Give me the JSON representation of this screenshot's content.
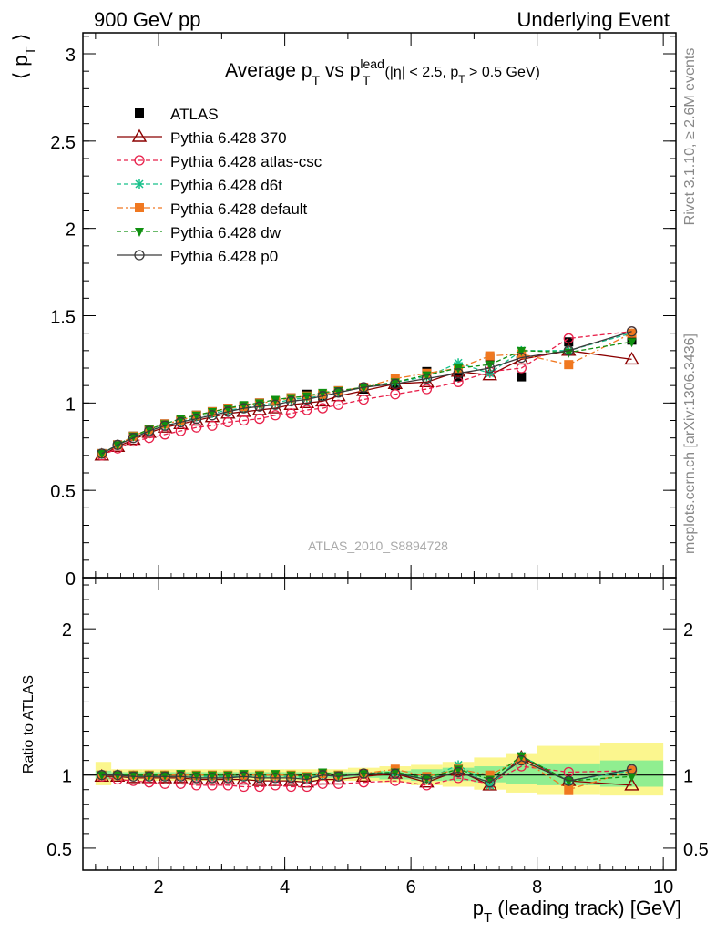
{
  "header": {
    "left": "900 GeV pp",
    "right": "Underlying Event"
  },
  "side_labels": {
    "rivet": "Rivet 3.1.10, ≥ 2.6M events",
    "mcplots": "mcplots.cern.ch [arXiv:1306.3436]"
  },
  "watermark": "ATLAS_2010_S8894728",
  "chart_data": [
    {
      "type": "scatter",
      "panel": "main",
      "title": "Average p_T vs p_T^lead (|η| < 2.5, p_T > 0.5 GeV)",
      "ylabel": "⟨ p_T ⟩",
      "xlim": [
        0.8,
        10.2
      ],
      "ylim": [
        0,
        3.12
      ],
      "yticks": [
        "0",
        "0.5",
        "1",
        "1.5",
        "2",
        "2.5",
        "3"
      ],
      "x": [
        1.1,
        1.35,
        1.6,
        1.85,
        2.1,
        2.35,
        2.6,
        2.85,
        3.1,
        3.35,
        3.6,
        3.85,
        4.1,
        4.35,
        4.6,
        4.85,
        5.25,
        5.75,
        6.25,
        6.75,
        7.25,
        7.75,
        8.5,
        9.5
      ],
      "series": [
        {
          "name": "ATLAS",
          "color": "#000000",
          "marker": "square-filled",
          "values": [
            0.71,
            0.76,
            0.81,
            0.85,
            0.88,
            0.9,
            0.93,
            0.95,
            0.97,
            0.98,
            1.0,
            1.01,
            1.03,
            1.05,
            1.04,
            1.07,
            1.08,
            1.1,
            1.18,
            1.15,
            1.26,
            1.15,
            1.35,
            1.36
          ]
        },
        {
          "name": "Pythia 6.428 370",
          "color": "#8b0000",
          "marker": "triangle-open",
          "line": "solid",
          "values": [
            0.7,
            0.75,
            0.79,
            0.83,
            0.86,
            0.88,
            0.9,
            0.92,
            0.94,
            0.95,
            0.96,
            0.97,
            0.99,
            1.0,
            1.01,
            1.04,
            1.07,
            1.11,
            1.12,
            1.18,
            1.16,
            1.25,
            1.3,
            1.25
          ]
        },
        {
          "name": "Pythia 6.428 atlas-csc",
          "color": "#e8204a",
          "marker": "circle-open",
          "line": "dashed",
          "values": [
            0.7,
            0.74,
            0.78,
            0.8,
            0.82,
            0.84,
            0.86,
            0.87,
            0.89,
            0.9,
            0.91,
            0.93,
            0.94,
            0.96,
            0.97,
            0.99,
            1.02,
            1.05,
            1.08,
            1.12,
            1.18,
            1.2,
            1.37,
            1.41
          ]
        },
        {
          "name": "Pythia 6.428 d6t",
          "color": "#18c08a",
          "marker": "star",
          "line": "dashed",
          "values": [
            0.71,
            0.76,
            0.81,
            0.84,
            0.87,
            0.89,
            0.92,
            0.94,
            0.96,
            0.97,
            0.99,
            1.0,
            1.02,
            1.03,
            1.04,
            1.06,
            1.09,
            1.12,
            1.15,
            1.23,
            1.17,
            1.3,
            1.3,
            1.4
          ]
        },
        {
          "name": "Pythia 6.428 default",
          "color": "#f07820",
          "marker": "square-filled",
          "line": "dashdot",
          "values": [
            0.71,
            0.76,
            0.81,
            0.85,
            0.88,
            0.9,
            0.93,
            0.95,
            0.97,
            0.98,
            1.0,
            1.01,
            1.03,
            1.04,
            1.05,
            1.07,
            1.09,
            1.14,
            1.17,
            1.2,
            1.27,
            1.28,
            1.22,
            1.4
          ]
        },
        {
          "name": "Pythia 6.428 dw",
          "color": "#109010",
          "marker": "triangle-down-filled",
          "line": "dashed",
          "values": [
            0.71,
            0.76,
            0.81,
            0.85,
            0.88,
            0.91,
            0.93,
            0.95,
            0.97,
            0.99,
            1.0,
            1.02,
            1.03,
            1.04,
            1.06,
            1.07,
            1.09,
            1.12,
            1.16,
            1.2,
            1.22,
            1.3,
            1.29,
            1.35
          ]
        },
        {
          "name": "Pythia 6.428 p0",
          "color": "#3a3a3a",
          "marker": "circle-open",
          "line": "solid",
          "values": [
            0.71,
            0.76,
            0.8,
            0.84,
            0.87,
            0.89,
            0.91,
            0.93,
            0.95,
            0.97,
            0.98,
            0.99,
            1.01,
            1.02,
            1.04,
            1.06,
            1.09,
            1.11,
            1.14,
            1.17,
            1.2,
            1.26,
            1.3,
            1.41
          ]
        }
      ]
    },
    {
      "type": "scatter",
      "panel": "ratio",
      "ylabel": "Ratio to ATLAS",
      "xlabel": "p_T (leading track) [GeV]",
      "xlim": [
        0.8,
        10.2
      ],
      "ylim": [
        0.35,
        2.35
      ],
      "xticks": [
        "2",
        "4",
        "6",
        "8",
        "10"
      ],
      "yticks": [
        "0.5",
        "1",
        "2"
      ],
      "reference": 1,
      "band_x_edges": [
        1.0,
        1.25,
        1.5,
        1.75,
        2.0,
        2.25,
        2.5,
        2.75,
        3.0,
        3.25,
        3.5,
        3.75,
        4.0,
        4.25,
        4.5,
        4.75,
        5.0,
        5.5,
        6.0,
        6.5,
        7.0,
        7.5,
        8.0,
        9.0,
        10.0
      ],
      "stat_band": [
        [
          0.97,
          1.03
        ],
        [
          0.98,
          1.02
        ],
        [
          0.98,
          1.02
        ],
        [
          0.98,
          1.02
        ],
        [
          0.98,
          1.02
        ],
        [
          0.98,
          1.02
        ],
        [
          0.98,
          1.02
        ],
        [
          0.98,
          1.02
        ],
        [
          0.98,
          1.02
        ],
        [
          0.98,
          1.02
        ],
        [
          0.98,
          1.02
        ],
        [
          0.98,
          1.02
        ],
        [
          0.98,
          1.02
        ],
        [
          0.98,
          1.02
        ],
        [
          0.98,
          1.02
        ],
        [
          0.98,
          1.02
        ],
        [
          0.98,
          1.02
        ],
        [
          0.97,
          1.03
        ],
        [
          0.96,
          1.04
        ],
        [
          0.96,
          1.05
        ],
        [
          0.95,
          1.06
        ],
        [
          0.94,
          1.07
        ],
        [
          0.93,
          1.08
        ],
        [
          0.92,
          1.1
        ]
      ],
      "total_band": [
        [
          0.93,
          1.09
        ],
        [
          0.96,
          1.04
        ],
        [
          0.96,
          1.04
        ],
        [
          0.96,
          1.04
        ],
        [
          0.96,
          1.04
        ],
        [
          0.96,
          1.04
        ],
        [
          0.96,
          1.04
        ],
        [
          0.96,
          1.04
        ],
        [
          0.96,
          1.04
        ],
        [
          0.96,
          1.04
        ],
        [
          0.96,
          1.04
        ],
        [
          0.96,
          1.04
        ],
        [
          0.96,
          1.04
        ],
        [
          0.96,
          1.04
        ],
        [
          0.96,
          1.04
        ],
        [
          0.96,
          1.04
        ],
        [
          0.96,
          1.05
        ],
        [
          0.95,
          1.06
        ],
        [
          0.93,
          1.07
        ],
        [
          0.92,
          1.09
        ],
        [
          0.9,
          1.12
        ],
        [
          0.88,
          1.15
        ],
        [
          0.87,
          1.2
        ],
        [
          0.86,
          1.22
        ]
      ],
      "x": [
        1.1,
        1.35,
        1.6,
        1.85,
        2.1,
        2.35,
        2.6,
        2.85,
        3.1,
        3.35,
        3.6,
        3.85,
        4.1,
        4.35,
        4.6,
        4.85,
        5.25,
        5.75,
        6.25,
        6.75,
        7.25,
        7.75,
        8.5,
        9.5
      ],
      "series": [
        {
          "name": "Pythia 6.428 370",
          "values": [
            0.99,
            0.99,
            0.98,
            0.98,
            0.98,
            0.98,
            0.97,
            0.97,
            0.97,
            0.97,
            0.96,
            0.96,
            0.96,
            0.95,
            0.97,
            0.97,
            0.99,
            1.01,
            0.95,
            1.03,
            0.93,
            1.12,
            0.96,
            0.93
          ]
        },
        {
          "name": "Pythia 6.428 atlas-csc",
          "values": [
            0.99,
            0.97,
            0.96,
            0.95,
            0.94,
            0.94,
            0.93,
            0.93,
            0.93,
            0.92,
            0.92,
            0.93,
            0.92,
            0.92,
            0.94,
            0.94,
            0.95,
            0.96,
            0.93,
            0.98,
            0.94,
            1.06,
            1.02,
            1.03
          ]
        },
        {
          "name": "Pythia 6.428 d6t",
          "values": [
            1.0,
            1.0,
            1.0,
            0.99,
            0.99,
            0.99,
            0.99,
            0.99,
            0.99,
            0.99,
            0.99,
            0.99,
            0.99,
            0.98,
            1.0,
            0.99,
            1.01,
            1.02,
            0.97,
            1.07,
            0.93,
            1.13,
            0.96,
            1.03
          ]
        },
        {
          "name": "Pythia 6.428 default",
          "values": [
            1.0,
            1.0,
            1.0,
            1.0,
            1.0,
            1.0,
            1.0,
            1.0,
            1.0,
            1.0,
            1.0,
            1.0,
            1.0,
            0.99,
            1.01,
            1.0,
            1.01,
            1.04,
            0.99,
            1.04,
            1.0,
            1.11,
            0.9,
            1.03
          ]
        },
        {
          "name": "Pythia 6.428 dw",
          "values": [
            1.0,
            1.0,
            1.0,
            1.0,
            1.0,
            1.01,
            1.0,
            1.0,
            1.0,
            1.01,
            1.0,
            1.01,
            1.0,
            0.99,
            1.02,
            1.0,
            1.01,
            1.02,
            0.98,
            1.04,
            0.97,
            1.13,
            0.96,
            0.99
          ]
        },
        {
          "name": "Pythia 6.428 p0",
          "values": [
            1.0,
            1.0,
            0.99,
            0.99,
            0.99,
            0.99,
            0.98,
            0.98,
            0.98,
            0.99,
            0.98,
            0.98,
            0.98,
            0.97,
            1.0,
            0.99,
            1.01,
            1.01,
            0.97,
            1.02,
            0.95,
            1.1,
            0.96,
            1.04
          ]
        }
      ]
    }
  ]
}
